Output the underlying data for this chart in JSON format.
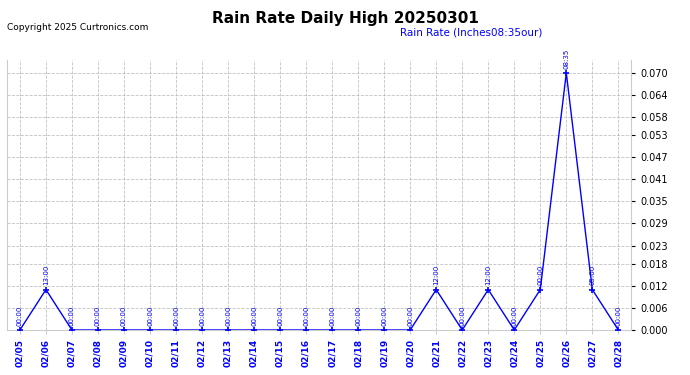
{
  "title": "Rain Rate Daily High 20250301",
  "copyright": "Copyright 2025 Curtronics.com",
  "legend_text": "Rain Rate (Inches08:35our)",
  "line_color": "blue",
  "bg_color": "white",
  "grid_color": "#bbbbbb",
  "ylim": [
    0.0,
    0.0735
  ],
  "yticks": [
    0.0,
    0.006,
    0.012,
    0.018,
    0.023,
    0.029,
    0.035,
    0.041,
    0.047,
    0.053,
    0.058,
    0.064,
    0.07
  ],
  "data_points": [
    {
      "date": "02/05",
      "time": "00:00",
      "value": 0.0
    },
    {
      "date": "02/06",
      "time": "13:00",
      "value": 0.011
    },
    {
      "date": "02/07",
      "time": "00:00",
      "value": 0.0
    },
    {
      "date": "02/08",
      "time": "00:00",
      "value": 0.0
    },
    {
      "date": "02/09",
      "time": "00:00",
      "value": 0.0
    },
    {
      "date": "02/10",
      "time": "00:00",
      "value": 0.0
    },
    {
      "date": "02/11",
      "time": "00:00",
      "value": 0.0
    },
    {
      "date": "02/12",
      "time": "00:00",
      "value": 0.0
    },
    {
      "date": "02/13",
      "time": "00:00",
      "value": 0.0
    },
    {
      "date": "02/14",
      "time": "00:00",
      "value": 0.0
    },
    {
      "date": "02/15",
      "time": "00:00",
      "value": 0.0
    },
    {
      "date": "02/16",
      "time": "00:00",
      "value": 0.0
    },
    {
      "date": "02/17",
      "time": "00:00",
      "value": 0.0
    },
    {
      "date": "02/18",
      "time": "00:00",
      "value": 0.0
    },
    {
      "date": "02/19",
      "time": "00:00",
      "value": 0.0
    },
    {
      "date": "02/20",
      "time": "00:00",
      "value": 0.0
    },
    {
      "date": "02/21",
      "time": "12:00",
      "value": 0.011
    },
    {
      "date": "02/22",
      "time": "00:00",
      "value": 0.0
    },
    {
      "date": "02/23",
      "time": "12:00",
      "value": 0.011
    },
    {
      "date": "02/24",
      "time": "00:00",
      "value": 0.0
    },
    {
      "date": "02/25",
      "time": "00:00",
      "value": 0.011
    },
    {
      "date": "02/26",
      "time": "08:35",
      "value": 0.07
    },
    {
      "date": "02/27",
      "time": "05:00",
      "value": 0.011
    },
    {
      "date": "02/28",
      "time": "00:00",
      "value": 0.0
    }
  ]
}
